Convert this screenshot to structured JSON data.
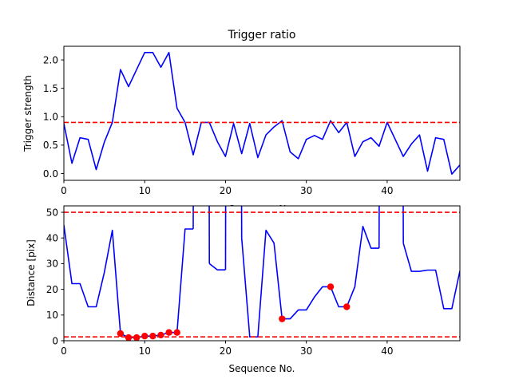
{
  "chart_data": [
    {
      "type": "line",
      "title": "Trigger ratio",
      "xlabel": "Sequence No.",
      "ylabel": "Trigger strength",
      "xlim": [
        0,
        49
      ],
      "ylim": [
        -0.12,
        2.24
      ],
      "xticks": [
        0,
        10,
        20,
        30,
        40
      ],
      "yticks": [
        0.0,
        0.5,
        1.0,
        1.5,
        2.0
      ],
      "ytick_labels": [
        "0.0",
        "0.5",
        "1.0",
        "1.5",
        "2.0"
      ],
      "series": [
        {
          "color": "#0000ff",
          "x": [
            0,
            1,
            2,
            3,
            4,
            5,
            6,
            7,
            8,
            9,
            10,
            11,
            12,
            13,
            14,
            15,
            16,
            17,
            18,
            19,
            20,
            21,
            22,
            23,
            24,
            25,
            26,
            27,
            28,
            29,
            30,
            31,
            32,
            33,
            34,
            35,
            36,
            37,
            38,
            39,
            40,
            41,
            42,
            43,
            44,
            45,
            46,
            47,
            48,
            49
          ],
          "values": [
            0.88,
            0.18,
            0.63,
            0.6,
            0.07,
            0.55,
            0.9,
            1.83,
            1.53,
            1.83,
            2.13,
            2.13,
            1.87,
            2.13,
            1.15,
            0.9,
            0.33,
            0.9,
            0.9,
            0.56,
            0.3,
            0.88,
            0.35,
            0.88,
            0.28,
            0.68,
            0.82,
            0.93,
            0.38,
            0.26,
            0.6,
            0.67,
            0.6,
            0.93,
            0.72,
            0.9,
            0.3,
            0.56,
            0.63,
            0.48,
            0.9,
            0.6,
            0.3,
            0.52,
            0.68,
            0.04,
            0.63,
            0.6,
            -0.01,
            0.15
          ]
        }
      ],
      "hlines": [
        {
          "y": 0.9,
          "color": "#ff0000",
          "style": "dashed"
        }
      ],
      "grid": false
    },
    {
      "type": "line",
      "title": "",
      "xlabel": "Sequence No.",
      "ylabel": "Distance [pix]",
      "xlim": [
        0,
        49
      ],
      "ylim": [
        0,
        52.5
      ],
      "xticks": [
        0,
        10,
        20,
        30,
        40
      ],
      "yticks": [
        0,
        10,
        20,
        30,
        40,
        50
      ],
      "ytick_labels": [
        "0",
        "10",
        "20",
        "30",
        "40",
        "50"
      ],
      "series": [
        {
          "color": "#0000ff",
          "x": [
            0,
            1,
            2,
            3,
            4,
            5,
            6,
            7,
            8,
            9,
            10,
            11,
            12,
            13,
            14,
            15,
            16,
            17,
            18,
            19,
            20,
            21,
            22,
            23,
            24,
            25,
            26,
            27,
            28,
            29,
            30,
            31,
            32,
            33,
            34,
            35,
            36,
            37,
            38,
            39,
            40,
            41,
            42,
            43,
            44,
            45,
            46,
            47,
            48,
            49
          ],
          "values": [
            45,
            22.2,
            22.2,
            13.2,
            13.2,
            26.5,
            43,
            2.8,
            1.2,
            1.2,
            1.8,
            1.8,
            2.2,
            3.2,
            3.2,
            43.5,
            43.5,
            null,
            30,
            27.6,
            27.6,
            null,
            40,
            1.5,
            1.5,
            43,
            38,
            8.5,
            8.5,
            12,
            12,
            17,
            21,
            21,
            13.2,
            13.2,
            21,
            44.5,
            36,
            36,
            null,
            null,
            38,
            27,
            27,
            27.5,
            27.5,
            12.5,
            12.5,
            27.2
          ]
        }
      ],
      "markers": {
        "color": "#ff0000",
        "x": [
          7,
          8,
          9,
          10,
          11,
          12,
          13,
          14,
          27,
          33,
          35
        ],
        "values": [
          2.8,
          1.2,
          1.2,
          1.8,
          1.8,
          2.2,
          3.2,
          3.2,
          8.5,
          21,
          13.2
        ]
      },
      "hlines": [
        {
          "y": 50,
          "color": "#ff0000",
          "style": "dashed"
        },
        {
          "y": 1.5,
          "color": "#ff0000",
          "style": "dashed"
        }
      ],
      "grid": false
    }
  ]
}
